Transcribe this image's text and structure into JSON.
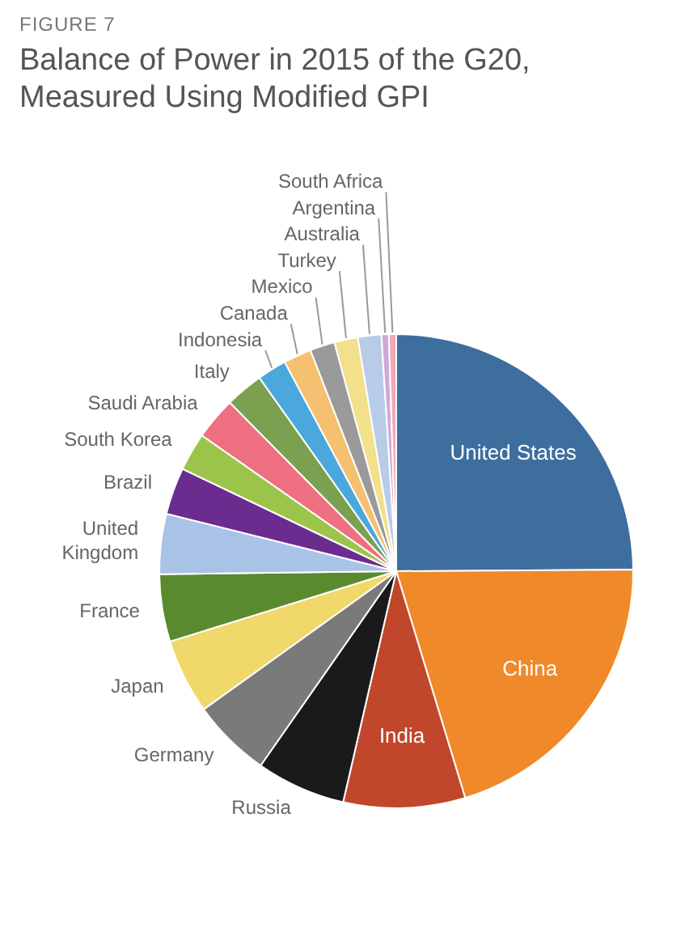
{
  "chart_data": {
    "type": "pie",
    "title": "Balance of Power in 2015 of the G20, Measured Using Modified GPI",
    "annotations": [
      "FIGURE 7"
    ],
    "categories": [
      "United States",
      "China",
      "India",
      "Russia",
      "Germany",
      "Japan",
      "France",
      "United Kingdom",
      "Brazil",
      "South Korea",
      "Saudi Arabia",
      "Italy",
      "Indonesia",
      "Canada",
      "Mexico",
      "Turkey",
      "Australia",
      "Argentina",
      "South Africa"
    ],
    "values": [
      24.9,
      20.4,
      8.3,
      6.1,
      5.4,
      5.1,
      4.6,
      4.1,
      3.2,
      2.6,
      2.9,
      2.6,
      2.0,
      1.9,
      1.7,
      1.6,
      1.6,
      0.5,
      0.5
    ],
    "colors": [
      "#3d6e9e",
      "#f0892a",
      "#c0472b",
      "#1a1a1a",
      "#7a7a7a",
      "#f0d86a",
      "#5a8a2e",
      "#a8c3e6",
      "#6a2d8f",
      "#9cc44a",
      "#ee6f80",
      "#7aa050",
      "#4aa8dc",
      "#f5c070",
      "#9a9a9a",
      "#f2e08a",
      "#b8cce8",
      "#d0a8d8",
      "#f4a8b8"
    ],
    "legend": false
  }
}
